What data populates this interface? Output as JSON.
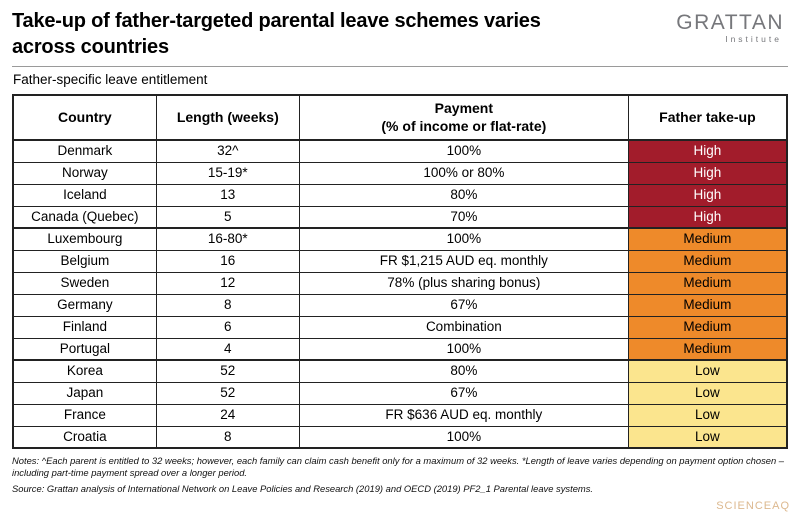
{
  "header": {
    "title_line1": "Take-up of father-targeted parental leave schemes varies",
    "title_line2": "across countries",
    "logo_name": "GRATTAN",
    "logo_subtitle": "Institute",
    "subtitle": "Father-specific leave entitlement"
  },
  "chart_data": {
    "type": "table",
    "title": "Take-up of father-targeted parental leave schemes varies across countries",
    "subtitle": "Father-specific leave entitlement",
    "columns": [
      {
        "label": "Country",
        "sub": ""
      },
      {
        "label": "Length (weeks)",
        "sub": ""
      },
      {
        "label": "Payment",
        "sub": "(% of income or flat-rate)"
      },
      {
        "label": "Father take-up",
        "sub": ""
      }
    ],
    "rows": [
      {
        "country": "Denmark",
        "length": "32^",
        "payment": "100%",
        "takeup": "High",
        "level": "high"
      },
      {
        "country": "Norway",
        "length": "15-19*",
        "payment": "100% or 80%",
        "takeup": "High",
        "level": "high"
      },
      {
        "country": "Iceland",
        "length": "13",
        "payment": "80%",
        "takeup": "High",
        "level": "high"
      },
      {
        "country": "Canada (Quebec)",
        "length": "5",
        "payment": "70%",
        "takeup": "High",
        "level": "high"
      },
      {
        "country": "Luxembourg",
        "length": "16-80*",
        "payment": "100%",
        "takeup": "Medium",
        "level": "medium"
      },
      {
        "country": "Belgium",
        "length": "16",
        "payment": "FR $1,215 AUD eq. monthly",
        "takeup": "Medium",
        "level": "medium"
      },
      {
        "country": "Sweden",
        "length": "12",
        "payment": "78% (plus sharing bonus)",
        "takeup": "Medium",
        "level": "medium"
      },
      {
        "country": "Germany",
        "length": "8",
        "payment": "67%",
        "takeup": "Medium",
        "level": "medium"
      },
      {
        "country": "Finland",
        "length": "6",
        "payment": "Combination",
        "takeup": "Medium",
        "level": "medium"
      },
      {
        "country": "Portugal",
        "length": "4",
        "payment": "100%",
        "takeup": "Medium",
        "level": "medium"
      },
      {
        "country": "Korea",
        "length": "52",
        "payment": "80%",
        "takeup": "Low",
        "level": "low"
      },
      {
        "country": "Japan",
        "length": "52",
        "payment": "67%",
        "takeup": "Low",
        "level": "low"
      },
      {
        "country": "France",
        "length": "24",
        "payment": "FR $636 AUD eq. monthly",
        "takeup": "Low",
        "level": "low"
      },
      {
        "country": "Croatia",
        "length": "8",
        "payment": "100%",
        "takeup": "Low",
        "level": "low"
      }
    ]
  },
  "colors": {
    "high": {
      "bg": "#A21C2B",
      "text": "#FFFFFF"
    },
    "medium": {
      "bg": "#EE8A2A",
      "text": "#000000"
    },
    "low": {
      "bg": "#FBE58E",
      "text": "#000000"
    }
  },
  "footer": {
    "notes": "Notes: ^Each parent is entitled to 32 weeks; however, each family can claim cash benefit only for a maximum of 32 weeks. *Length of leave varies depending on payment option chosen – including part-time payment spread over a longer period.",
    "source": "Source: Grattan analysis of International Network on Leave Policies and Research (2019) and OECD (2019) PF2_1 Parental leave systems."
  },
  "watermark": "SCIENCEAQ"
}
